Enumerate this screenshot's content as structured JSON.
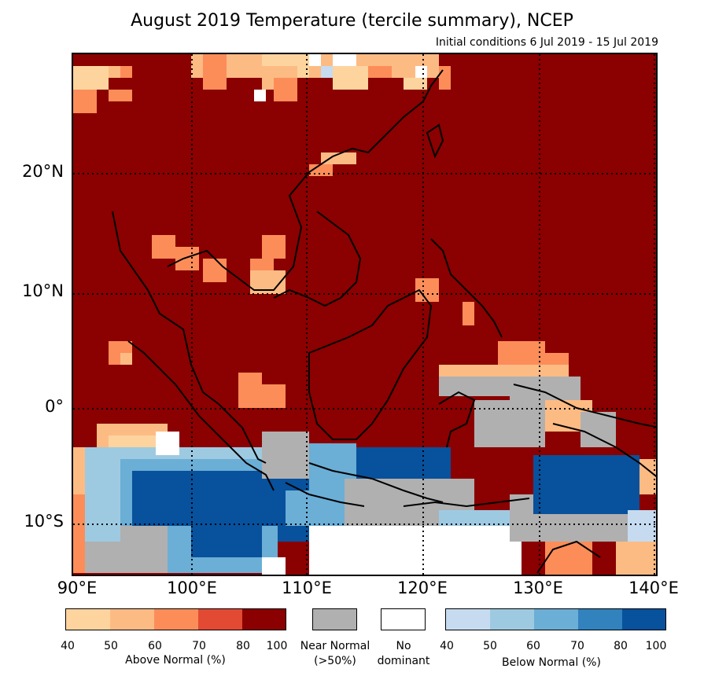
{
  "title": "August 2019 Temperature (tercile summary), NCEP",
  "subtitle": "Initial conditions 6 Jul 2019 - 15 Jul 2019",
  "latitude_labels": [
    "20°N",
    "10°N",
    "0°",
    "10°S"
  ],
  "longitude_labels": [
    "90°E",
    "100°E",
    "110°E",
    "120°E",
    "130°E",
    "140°E"
  ],
  "legend": {
    "above": {
      "ticks": [
        "40",
        "50",
        "60",
        "70",
        "80",
        "100"
      ],
      "caption": "Above Normal (%)",
      "colors": [
        "#fdd49e",
        "#fdbb84",
        "#fc8d59",
        "#e34a33",
        "#8b0000"
      ]
    },
    "near": {
      "label": "Near Normal",
      "sub": "(>50%)",
      "color": "#b0b0b0"
    },
    "none": {
      "label": "No",
      "sub": "dominant",
      "color": "#ffffff"
    },
    "below": {
      "ticks": [
        "40",
        "50",
        "60",
        "70",
        "80",
        "100"
      ],
      "caption": "Below Normal (%)",
      "colors": [
        "#c6dbef",
        "#9ecae1",
        "#6baed6",
        "#3182bd",
        "#08519c"
      ]
    }
  }
}
